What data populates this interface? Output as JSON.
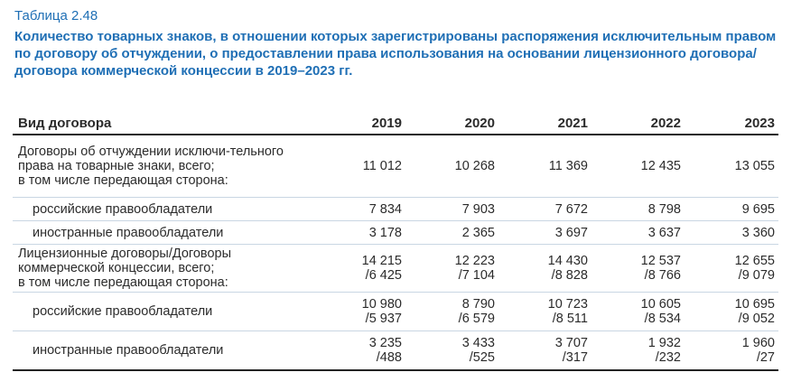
{
  "caption": {
    "table_number": "Таблица 2.48",
    "title": "Количество товарных знаков, в отношении которых зарегистрированы распоряжения исключительным правом по договору об отчуждении, о предоставлении права использования на основании лицензионного договора/договора коммерческой концессии в 2019–2023 гг."
  },
  "table": {
    "headers": [
      "Вид договора",
      "2019",
      "2020",
      "2021",
      "2022",
      "2023"
    ],
    "rows": [
      {
        "label": "Договоры об отчуждении исключи-тельного права на товарные знаки, всего;\nв том числе передающая сторона:",
        "values": [
          "11 012",
          "10 268",
          "11 369",
          "12 435",
          "13 055"
        ]
      },
      {
        "label": "российские правообладатели",
        "values": [
          "7 834",
          "7 903",
          "7 672",
          "8 798",
          "9 695"
        ]
      },
      {
        "label": "иностранные правообладатели",
        "values": [
          "3 178",
          "2 365",
          "3 697",
          "3 637",
          "3 360"
        ]
      },
      {
        "label": "Лицензионные договоры/Договоры коммерческой концессии, всего;\nв том числе передающая сторона:",
        "values": [
          "14 215\n/6 425",
          "12 223\n/7 104",
          "14 430\n/8 828",
          "12 537\n/8 766",
          "12 655\n/9 079"
        ]
      },
      {
        "label": "российские правообладатели",
        "values": [
          "10 980\n/5 937",
          "8 790\n/6 579",
          "10 723\n/8 511",
          "10 605\n/8 534",
          "10 695\n/9 052"
        ]
      },
      {
        "label": "иностранные правообладатели",
        "values": [
          "3 235\n/488",
          "3 433\n/525",
          "3 707\n/317",
          "1 932\n/232",
          "1 960\n/27"
        ]
      }
    ]
  }
}
